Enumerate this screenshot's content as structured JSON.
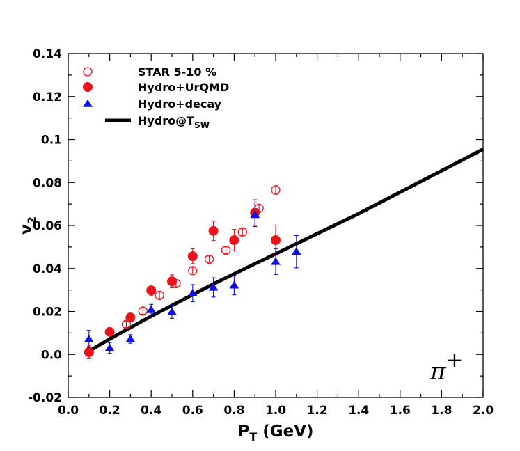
{
  "chart_data": {
    "type": "scatter",
    "xlabel": "P",
    "xlabel_sub": "T",
    "xlabel_unit": "(GeV)",
    "ylabel": "v",
    "ylabel_sub": "2",
    "xlim": [
      0.0,
      2.0
    ],
    "ylim": [
      -0.02,
      0.14
    ],
    "x_ticks": [
      0.0,
      0.2,
      0.4,
      0.6,
      0.8,
      1.0,
      1.2,
      1.4,
      1.6,
      1.8,
      2.0
    ],
    "x_tick_labels": [
      "0.0",
      "0.2",
      "0.4",
      "0.6",
      "0.8",
      "1.0",
      "1.2",
      "1.4",
      "1.6",
      "1.8",
      "2.0"
    ],
    "y_ticks": [
      -0.02,
      0.0,
      0.02,
      0.04,
      0.06,
      0.08,
      0.1,
      0.12,
      0.14
    ],
    "y_tick_labels": [
      "-0.02",
      "0.0",
      "0.02",
      "0.04",
      "0.06",
      "0.08",
      "0.1",
      "0.12",
      "0.14"
    ],
    "grid": false,
    "legend_position": "top-left",
    "annotation": {
      "text": "π",
      "superscript": "+"
    },
    "series": [
      {
        "name": "STAR 5-10 %",
        "marker": "open-circle",
        "color": "#e8141b",
        "points": [
          {
            "x": 0.28,
            "y": 0.014,
            "err": 0.0015
          },
          {
            "x": 0.36,
            "y": 0.0202,
            "err": 0.0015
          },
          {
            "x": 0.44,
            "y": 0.0275,
            "err": 0.0015
          },
          {
            "x": 0.52,
            "y": 0.033,
            "err": 0.0015
          },
          {
            "x": 0.6,
            "y": 0.039,
            "err": 0.0015
          },
          {
            "x": 0.68,
            "y": 0.0443,
            "err": 0.0015
          },
          {
            "x": 0.76,
            "y": 0.0485,
            "err": 0.0015
          },
          {
            "x": 0.84,
            "y": 0.057,
            "err": 0.0015
          },
          {
            "x": 0.92,
            "y": 0.068,
            "err": 0.0015
          },
          {
            "x": 1.0,
            "y": 0.0765,
            "err": 0.002
          }
        ]
      },
      {
        "name": "Hydro+UrQMD",
        "marker": "filled-circle",
        "color": "#e8141b",
        "points": [
          {
            "x": 0.1,
            "y": 0.001,
            "err": 0.003
          },
          {
            "x": 0.2,
            "y": 0.0105,
            "err": 0.0015
          },
          {
            "x": 0.3,
            "y": 0.0172,
            "err": 0.002
          },
          {
            "x": 0.4,
            "y": 0.0298,
            "err": 0.0025
          },
          {
            "x": 0.5,
            "y": 0.034,
            "err": 0.003
          },
          {
            "x": 0.6,
            "y": 0.0457,
            "err": 0.0035
          },
          {
            "x": 0.7,
            "y": 0.0575,
            "err": 0.0045
          },
          {
            "x": 0.8,
            "y": 0.0532,
            "err": 0.005
          },
          {
            "x": 0.9,
            "y": 0.066,
            "err": 0.006
          },
          {
            "x": 1.0,
            "y": 0.0532,
            "err": 0.007
          }
        ]
      },
      {
        "name": "Hydro+decay",
        "marker": "filled-triangle",
        "color": "#1010e0",
        "points": [
          {
            "x": 0.1,
            "y": 0.0072,
            "err": 0.004
          },
          {
            "x": 0.2,
            "y": 0.003,
            "err": 0.0025
          },
          {
            "x": 0.3,
            "y": 0.0072,
            "err": 0.002
          },
          {
            "x": 0.4,
            "y": 0.0208,
            "err": 0.0025
          },
          {
            "x": 0.5,
            "y": 0.0198,
            "err": 0.003
          },
          {
            "x": 0.6,
            "y": 0.0285,
            "err": 0.004
          },
          {
            "x": 0.7,
            "y": 0.0312,
            "err": 0.0045
          },
          {
            "x": 0.8,
            "y": 0.0322,
            "err": 0.0045
          },
          {
            "x": 0.9,
            "y": 0.065,
            "err": 0.0055
          },
          {
            "x": 1.0,
            "y": 0.0432,
            "err": 0.006
          },
          {
            "x": 1.1,
            "y": 0.0478,
            "err": 0.0075
          }
        ]
      },
      {
        "name": "Hydro@T",
        "name_sub": "SW",
        "marker": "line",
        "color": "#000000",
        "points": [
          {
            "x": 0.1,
            "y": 0.0015
          },
          {
            "x": 0.2,
            "y": 0.0072
          },
          {
            "x": 0.3,
            "y": 0.0125
          },
          {
            "x": 0.4,
            "y": 0.0178
          },
          {
            "x": 0.5,
            "y": 0.0228
          },
          {
            "x": 0.6,
            "y": 0.0278
          },
          {
            "x": 0.7,
            "y": 0.0328
          },
          {
            "x": 0.8,
            "y": 0.0375
          },
          {
            "x": 0.9,
            "y": 0.0422
          },
          {
            "x": 1.0,
            "y": 0.0468
          },
          {
            "x": 1.2,
            "y": 0.0562
          },
          {
            "x": 1.4,
            "y": 0.0655
          },
          {
            "x": 1.6,
            "y": 0.0755
          },
          {
            "x": 1.8,
            "y": 0.0855
          },
          {
            "x": 2.0,
            "y": 0.0955
          }
        ]
      }
    ]
  }
}
